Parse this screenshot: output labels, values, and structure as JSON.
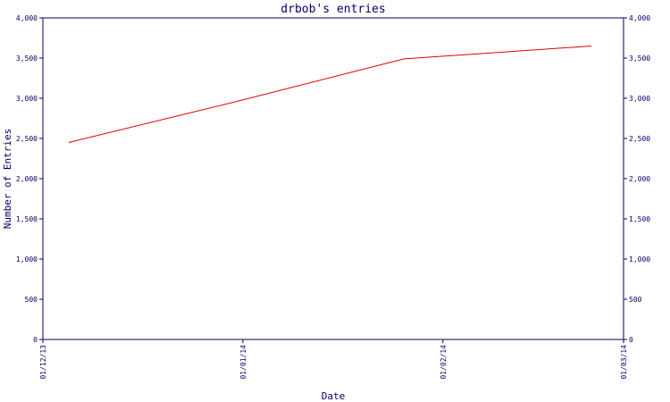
{
  "chart_data": {
    "type": "line",
    "title": "drbob's entries",
    "xlabel": "Date",
    "ylabel": "Number of Entries",
    "x_ticks": [
      "01/12/13",
      "01/01/14",
      "01/02/14",
      "01/03/14"
    ],
    "y_ticks": [
      "0",
      "500",
      "1,000",
      "1,500",
      "2,000",
      "2,500",
      "3,000",
      "3,500",
      "4,000"
    ],
    "ylim": [
      0,
      4000
    ],
    "xlim": [
      "2013-12-01",
      "2014-03-01"
    ],
    "y_axis_both_sides": true,
    "grid": false,
    "series": [
      {
        "color": "#dd0000",
        "points": [
          {
            "x": "2013-12-05",
            "y": 2450
          },
          {
            "x": "2013-12-31",
            "y": 2960
          },
          {
            "x": "2014-01-26",
            "y": 3490
          },
          {
            "x": "2014-02-24",
            "y": 3650
          }
        ]
      }
    ]
  },
  "colors": {
    "axis": "#000066",
    "text": "#000066",
    "line": "#dd0000"
  }
}
